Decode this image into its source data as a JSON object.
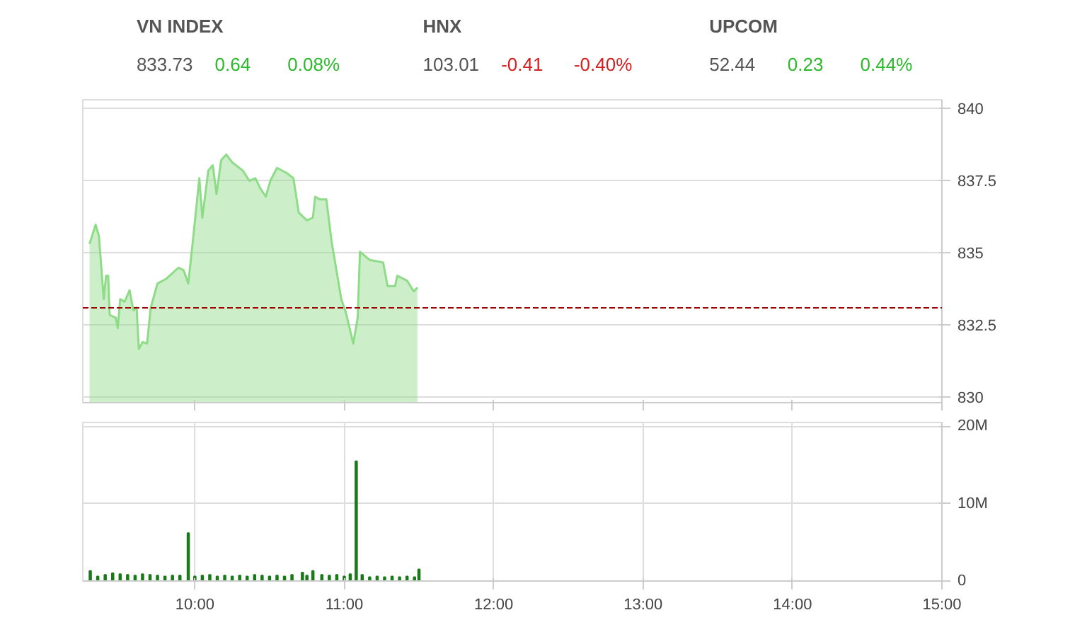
{
  "chart_data": [
    {
      "type": "other",
      "annotations": [
        "VN INDEX",
        "833.73",
        "0.64",
        "0.08%",
        "HNX",
        "103.01",
        "-0.41",
        "-0.40%",
        "UPCOM",
        "52.44",
        "0.23",
        "0.44%"
      ],
      "colors": [
        "#555555",
        "#555555",
        "#2db82d",
        "#2db82d",
        "#555555",
        "#555555",
        "#d42020",
        "#d42020",
        "#555555",
        "#555555",
        "#2db82d",
        "#2db82d"
      ]
    },
    {
      "type": "area",
      "xlim": [
        9.25,
        15
      ],
      "ylim": [
        829.8,
        840.3
      ],
      "yticks": [
        {
          "value": 830,
          "label": "830"
        },
        {
          "value": 832.5,
          "label": "832.5"
        },
        {
          "value": 835,
          "label": "835"
        },
        {
          "value": 837.5,
          "label": "837.5"
        },
        {
          "value": 840,
          "label": "840"
        }
      ],
      "xticks": [
        {
          "value": 10,
          "label": null
        },
        {
          "value": 11,
          "label": null
        },
        {
          "value": 12,
          "label": null
        },
        {
          "value": 13,
          "label": null
        },
        {
          "value": 14,
          "label": null
        },
        {
          "value": 15,
          "label": null
        }
      ],
      "tick_labels": "y",
      "grid": "y",
      "ref_lines": [
        {
          "axis": "y",
          "value": 833.09,
          "color": "#a00000",
          "line_style": "dashed"
        }
      ],
      "series": [
        {
          "color": "#8fdc88",
          "x": [
            9.295,
            9.336,
            9.358,
            9.39,
            9.406,
            9.42,
            9.43,
            9.47,
            9.484,
            9.5,
            9.53,
            9.563,
            9.588,
            9.61,
            9.625,
            9.65,
            9.68,
            9.705,
            9.75,
            9.81,
            9.89,
            9.925,
            9.956,
            9.99,
            10.03,
            10.05,
            10.09,
            10.12,
            10.145,
            10.176,
            10.21,
            10.25,
            10.32,
            10.365,
            10.405,
            10.44,
            10.475,
            10.505,
            10.55,
            10.615,
            10.66,
            10.695,
            10.75,
            10.79,
            10.805,
            10.835,
            10.88,
            10.915,
            10.98,
            11.01,
            11.06,
            11.09,
            11.105,
            11.17,
            11.26,
            11.29,
            11.34,
            11.355,
            11.42,
            11.465,
            11.49
          ],
          "values": [
            835.3,
            835.97,
            835.57,
            833.39,
            834.2,
            834.2,
            832.84,
            832.75,
            832.39,
            833.39,
            833.3,
            833.7,
            833.0,
            833.1,
            831.66,
            831.9,
            831.85,
            833.1,
            833.93,
            834.1,
            834.48,
            834.39,
            833.93,
            835.57,
            837.58,
            836.21,
            837.85,
            838.03,
            837.03,
            838.21,
            838.4,
            838.13,
            837.85,
            837.49,
            837.58,
            837.21,
            836.94,
            837.49,
            837.94,
            837.76,
            837.58,
            836.39,
            836.12,
            836.21,
            836.94,
            836.85,
            836.85,
            835.39,
            833.39,
            832.94,
            831.85,
            832.75,
            835.03,
            834.75,
            834.66,
            833.84,
            833.84,
            834.2,
            834.03,
            833.66,
            833.79
          ]
        }
      ]
    },
    {
      "type": "bar",
      "xlim": [
        9.25,
        15
      ],
      "ylim": [
        0,
        20.5
      ],
      "yticks": [
        {
          "value": 0,
          "label": "0"
        },
        {
          "value": 10,
          "label": "10M"
        },
        {
          "value": 20,
          "label": "20M"
        }
      ],
      "xticks": [
        {
          "value": 10,
          "label": "10:00"
        },
        {
          "value": 11,
          "label": "11:00"
        },
        {
          "value": 12,
          "label": "12:00"
        },
        {
          "value": 13,
          "label": "13:00"
        },
        {
          "value": 14,
          "label": "14:00"
        },
        {
          "value": 15,
          "label": "15:00"
        }
      ],
      "grid": true,
      "series": [
        {
          "color": "#1a7a1a",
          "x": [
            9.3,
            9.35,
            9.4,
            9.45,
            9.5,
            9.55,
            9.6,
            9.65,
            9.7,
            9.75,
            9.8,
            9.85,
            9.9,
            9.956,
            10.0,
            10.05,
            10.1,
            10.15,
            10.2,
            10.25,
            10.3,
            10.35,
            10.4,
            10.45,
            10.5,
            10.55,
            10.6,
            10.65,
            10.72,
            10.75,
            10.79,
            10.85,
            10.9,
            10.95,
            11.0,
            11.04,
            11.08,
            11.12,
            11.17,
            11.22,
            11.27,
            11.32,
            11.37,
            11.42,
            11.47,
            11.5
          ],
          "values": [
            1.3,
            0.6,
            0.8,
            1.0,
            0.9,
            0.8,
            0.7,
            0.9,
            0.8,
            0.7,
            0.6,
            0.7,
            0.7,
            6.2,
            0.6,
            0.7,
            0.8,
            0.6,
            0.7,
            0.6,
            0.7,
            0.6,
            0.8,
            0.7,
            0.6,
            0.7,
            0.6,
            0.8,
            1.1,
            0.7,
            1.3,
            0.8,
            0.7,
            0.8,
            0.6,
            0.9,
            15.5,
            0.8,
            0.5,
            0.6,
            0.5,
            0.6,
            0.5,
            0.6,
            0.5,
            1.5
          ]
        }
      ]
    }
  ]
}
